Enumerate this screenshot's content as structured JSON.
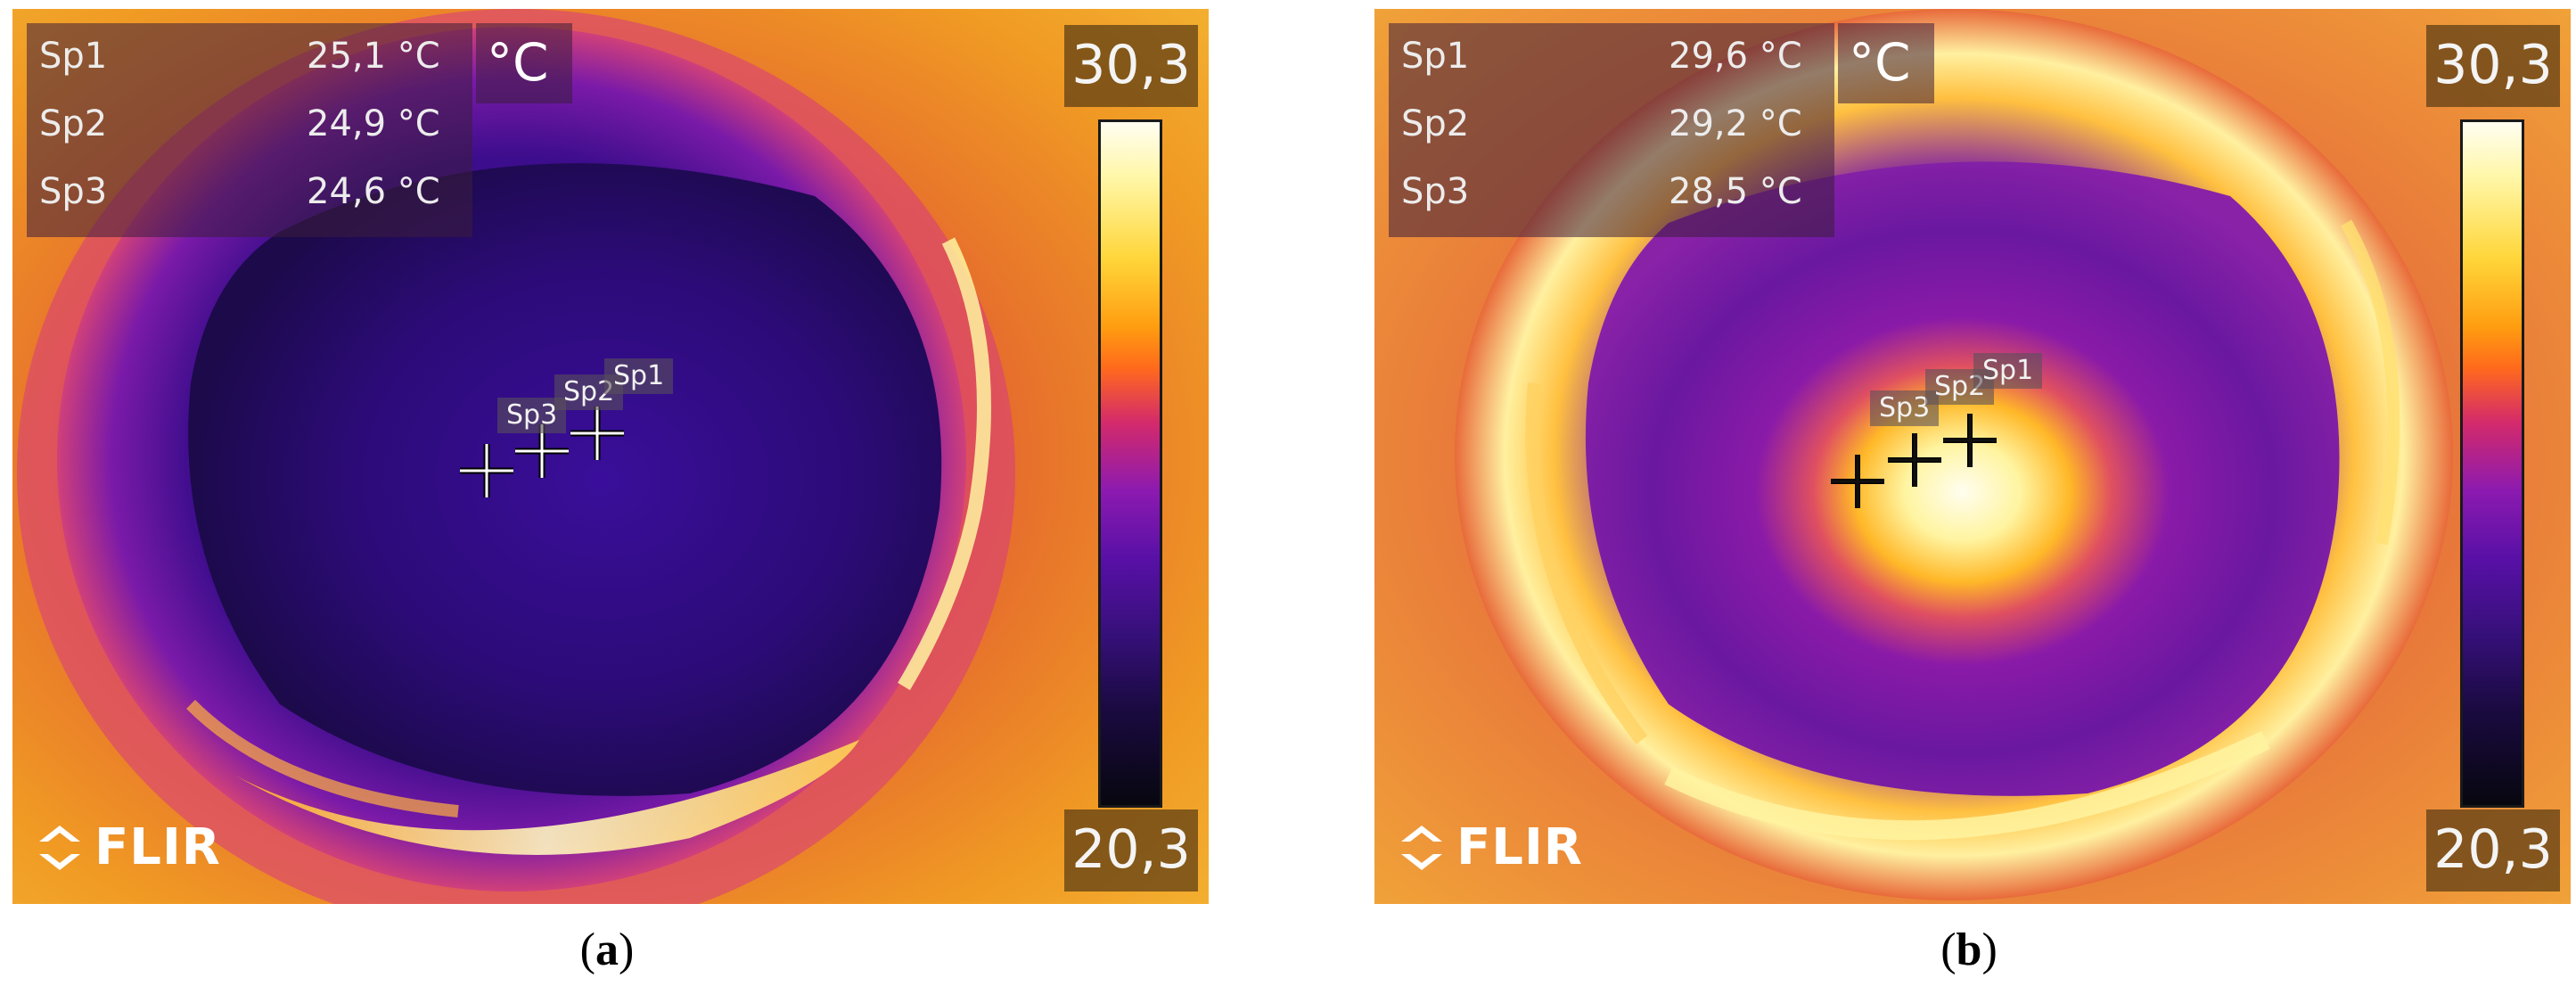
{
  "panels": [
    {
      "caption_letter": "a",
      "readouts": [
        {
          "label": "Sp1",
          "value": "25,1 °C"
        },
        {
          "label": "Sp2",
          "value": "24,9 °C"
        },
        {
          "label": "Sp3",
          "value": "24,6 °C"
        }
      ],
      "unit": "°C",
      "scale_max": "30,3",
      "scale_min": "20,3",
      "spot_tags": [
        "Sp1",
        "Sp2",
        "Sp3"
      ],
      "logo": "FLIR"
    },
    {
      "caption_letter": "b",
      "readouts": [
        {
          "label": "Sp1",
          "value": "29,6 °C"
        },
        {
          "label": "Sp2",
          "value": "29,2 °C"
        },
        {
          "label": "Sp3",
          "value": "28,5 °C"
        }
      ],
      "unit": "°C",
      "scale_max": "30,3",
      "scale_min": "20,3",
      "spot_tags": [
        "Sp1",
        "Sp2",
        "Sp3"
      ],
      "logo": "FLIR"
    }
  ],
  "colors": {
    "hot": "#fffef2",
    "warm": "#ff9d10",
    "mid": "#8c1ab0",
    "cool": "#36107a",
    "cold": "#07070f"
  }
}
